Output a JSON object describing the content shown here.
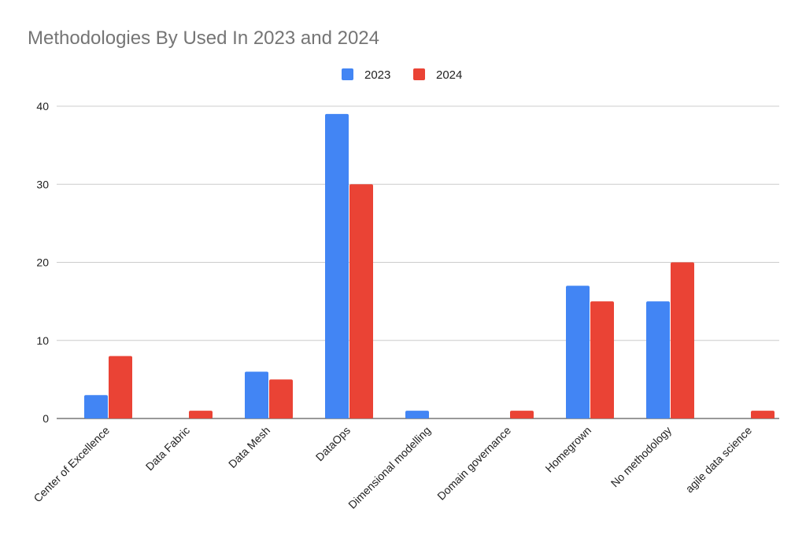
{
  "chart_data": {
    "type": "bar",
    "title": "Methodologies By Used In 2023 and 2024",
    "xlabel": "",
    "ylabel": "",
    "categories": [
      "Center of Excellence",
      "Data Fabric",
      "Data Mesh",
      "DataOps",
      "Dimensional modelling",
      "Domain governance",
      "Homegrown",
      "No methodology",
      "agile data science"
    ],
    "series": [
      {
        "name": "2023",
        "color": "#4285f4",
        "values": [
          3,
          0,
          6,
          39,
          1,
          0,
          17,
          15,
          0
        ]
      },
      {
        "name": "2024",
        "color": "#ea4335",
        "values": [
          8,
          1,
          5,
          30,
          0,
          1,
          15,
          20,
          1
        ]
      }
    ],
    "ylim": [
      0,
      40
    ],
    "yticks": [
      "0",
      "10",
      "20",
      "30",
      "40"
    ],
    "grid": true,
    "legend_position": "top-center"
  }
}
